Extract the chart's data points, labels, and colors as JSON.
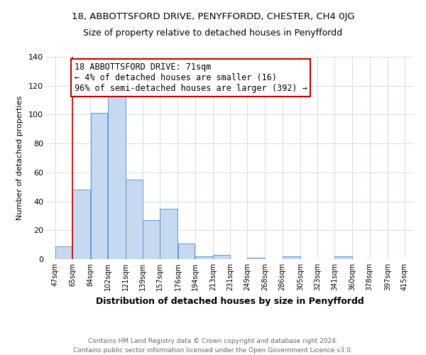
{
  "title": "18, ABBOTTSFORD DRIVE, PENYFFORDD, CHESTER, CH4 0JG",
  "subtitle": "Size of property relative to detached houses in Penyffordd",
  "xlabel": "Distribution of detached houses by size in Penyffordd",
  "ylabel": "Number of detached properties",
  "footer_line1": "Contains HM Land Registry data © Crown copyright and database right 2024.",
  "footer_line2": "Contains public sector information licensed under the Open Government Licence v3.0.",
  "bar_values": [
    9,
    48,
    101,
    114,
    55,
    27,
    35,
    11,
    2,
    3,
    0,
    1,
    0,
    2,
    0,
    0,
    2
  ],
  "bar_left_edges": [
    47,
    65,
    84,
    102,
    121,
    139,
    157,
    176,
    194,
    213,
    231,
    249,
    268,
    286,
    305,
    323,
    341
  ],
  "bar_widths": [
    18,
    19,
    18,
    19,
    18,
    18,
    19,
    18,
    19,
    18,
    18,
    19,
    18,
    19,
    18,
    18,
    19
  ],
  "x_tick_positions": [
    47,
    65,
    84,
    102,
    121,
    139,
    157,
    176,
    194,
    213,
    231,
    249,
    268,
    286,
    305,
    323,
    341,
    360,
    378,
    397,
    415
  ],
  "x_tick_labels": [
    "47sqm",
    "65sqm",
    "84sqm",
    "102sqm",
    "121sqm",
    "139sqm",
    "157sqm",
    "176sqm",
    "194sqm",
    "213sqm",
    "231sqm",
    "249sqm",
    "268sqm",
    "286sqm",
    "305sqm",
    "323sqm",
    "341sqm",
    "360sqm",
    "378sqm",
    "397sqm",
    "415sqm"
  ],
  "ylim": [
    0,
    140
  ],
  "yticks": [
    0,
    20,
    40,
    60,
    80,
    100,
    120,
    140
  ],
  "bar_color": "#c6d9f0",
  "bar_edge_color": "#5b9bd5",
  "red_line_x": 65,
  "annotation_text": "18 ABBOTTSFORD DRIVE: 71sqm\n← 4% of detached houses are smaller (16)\n96% of semi-detached houses are larger (392) →",
  "annotation_box_color": "#ffffff",
  "annotation_box_edge_color": "#c00000",
  "background_color": "#ffffff",
  "grid_color": "#d0dce8",
  "title_fontsize": 9.5,
  "subtitle_fontsize": 9,
  "xlabel_fontsize": 9,
  "ylabel_fontsize": 8,
  "annotation_fontsize": 8.5,
  "footer_fontsize": 6.5
}
